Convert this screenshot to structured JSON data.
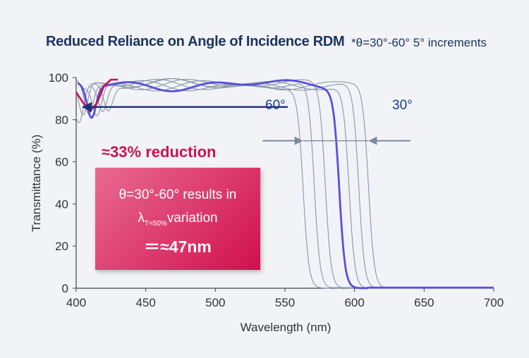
{
  "title": "Reduced Reliance on Angle of Incidence RDM",
  "subtitle": "*θ=30°-60°  5° increments",
  "annotations": {
    "reduction": "≈33% reduction",
    "box_line1": "θ=30°-60° results in",
    "box_line2_symbol": "λ",
    "box_line2_sub": "T=50%",
    "box_line2_rest": "variation",
    "box_line3": "＝≈47nm",
    "arrow_left_label": "60°",
    "arrow_right_label": "30°"
  },
  "chart_data": {
    "type": "line",
    "xlabel": "Wavelength (nm)",
    "ylabel": "Transmittance (%)",
    "xlim": [
      400,
      700
    ],
    "ylim": [
      0,
      100
    ],
    "x_ticks": [
      "400",
      "450",
      "500",
      "550",
      "600",
      "650",
      "700"
    ],
    "y_ticks": [
      "0",
      "20",
      "40",
      "60",
      "80",
      "100"
    ],
    "grid": false,
    "series": [
      {
        "edge_50": 563,
        "dip_at": 402,
        "dip_depth": 83,
        "color": "#8c97a7",
        "highlight": false
      },
      {
        "edge_50": 571,
        "dip_at": 405,
        "dip_depth": 84,
        "color": "#8c97a7",
        "highlight": false
      },
      {
        "edge_50": 579,
        "dip_at": 409,
        "dip_depth": 85,
        "color": "#8c97a7",
        "highlight": false
      },
      {
        "edge_50": 589,
        "dip_at": 411,
        "dip_depth": 85,
        "color": "#5a4fd8",
        "highlight": true
      },
      {
        "edge_50": 596,
        "dip_at": 415,
        "dip_depth": 86,
        "color": "#8c97a7",
        "highlight": false
      },
      {
        "edge_50": 603,
        "dip_at": 419,
        "dip_depth": 87,
        "color": "#8c97a7",
        "highlight": false
      },
      {
        "edge_50": 610,
        "dip_at": 423,
        "dip_depth": 88,
        "color": "#8c97a7",
        "highlight": false
      }
    ],
    "red_segment": {
      "x": [
        400,
        405,
        410,
        415,
        420,
        425,
        430
      ],
      "y": [
        93,
        88,
        84,
        88,
        96,
        99,
        99
      ],
      "color": "#d0104c"
    },
    "arrows": {
      "angle_arrow": {
        "from_x": 552,
        "to_x": 404,
        "y": 86,
        "color": "#1a2f7a"
      },
      "bracket_left": {
        "from_x": 534,
        "to_x": 563,
        "y": 70
      },
      "bracket_right": {
        "from_x": 640,
        "to_x": 610,
        "y": 70
      },
      "bracket_color": "#7d8a9c"
    }
  }
}
